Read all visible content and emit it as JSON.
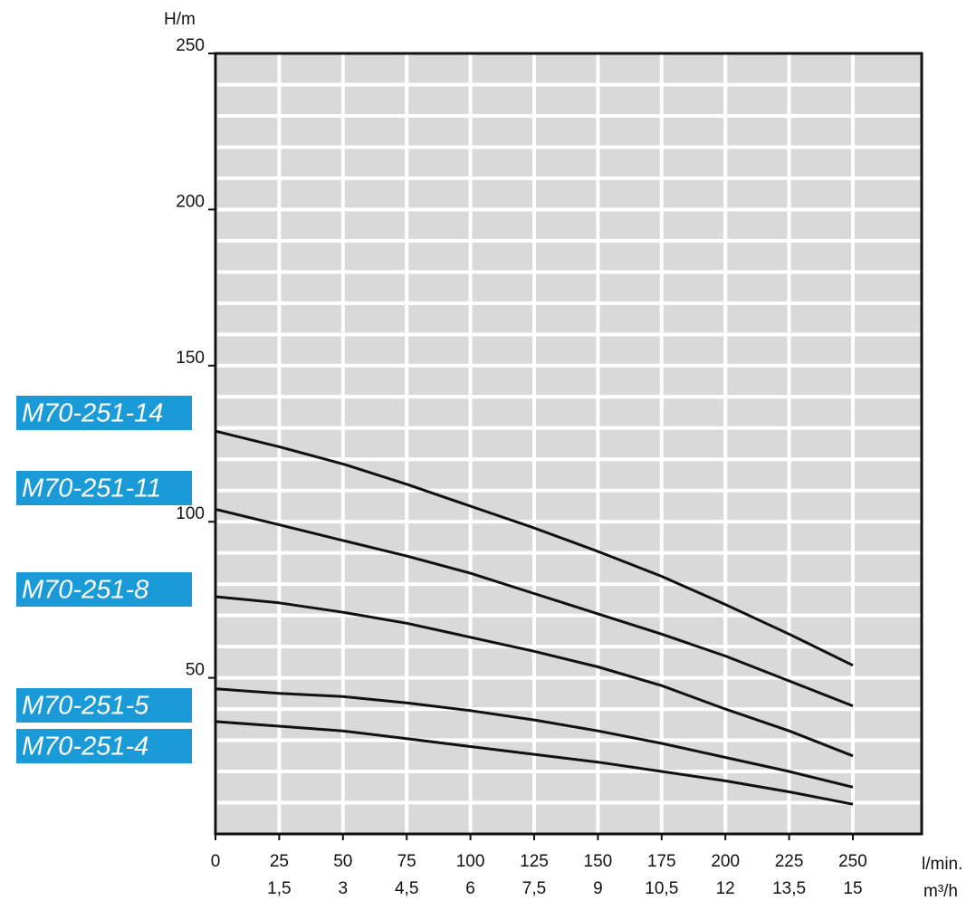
{
  "chart_data": {
    "type": "line",
    "y_axis_label": "H/m",
    "x_axis_label": "l/min.",
    "x2_axis_label": "m³/h",
    "x": [
      0,
      25,
      50,
      75,
      100,
      125,
      150,
      175,
      200,
      225,
      250
    ],
    "series": [
      {
        "name": "M70-251-14",
        "color": "#111111",
        "values": [
          129,
          124,
          118.5,
          112,
          105,
          98,
          90.5,
          82.5,
          73.5,
          64,
          54
        ]
      },
      {
        "name": "M70-251-11",
        "color": "#111111",
        "values": [
          104,
          99,
          94,
          89,
          83.5,
          77,
          70.5,
          64,
          57,
          49,
          41
        ]
      },
      {
        "name": "M70-251-8",
        "color": "#111111",
        "values": [
          76,
          74,
          71,
          67.5,
          63,
          58.5,
          53.5,
          47.5,
          40,
          33,
          25
        ]
      },
      {
        "name": "M70-251-5",
        "color": "#111111",
        "values": [
          46.5,
          45,
          44,
          42,
          39.5,
          36.5,
          33,
          29,
          24.5,
          20,
          15
        ]
      },
      {
        "name": "M70-251-4",
        "color": "#111111",
        "values": [
          36,
          34.5,
          33,
          30.5,
          28,
          25.5,
          23,
          20,
          17,
          13.5,
          9.5
        ]
      }
    ],
    "label_color": "#1a9ad6",
    "xlim": [
      0,
      277
    ],
    "ylim": [
      0,
      250
    ],
    "x2lim": [
      0,
      16.62
    ],
    "xticks": [
      0,
      25,
      50,
      75,
      100,
      125,
      150,
      175,
      200,
      225,
      250
    ],
    "x2ticks": [
      {
        "value": 1.5,
        "label": "1,5"
      },
      3,
      {
        "value": 4.5,
        "label": "4,5"
      },
      6,
      {
        "value": 7.5,
        "label": "7,5"
      },
      9,
      {
        "value": 10.5,
        "label": "10,5"
      },
      12,
      {
        "value": 13.5,
        "label": "13,5"
      },
      15
    ],
    "yticks": [
      50,
      100,
      150,
      200,
      250
    ],
    "ygrid": [
      10,
      20,
      30,
      40,
      50,
      60,
      70,
      80,
      90,
      100,
      110,
      120,
      130,
      140,
      150,
      160,
      170,
      180,
      190,
      200,
      210,
      220,
      230,
      240
    ],
    "grid": true,
    "plot_background": "#d9d9d9"
  }
}
